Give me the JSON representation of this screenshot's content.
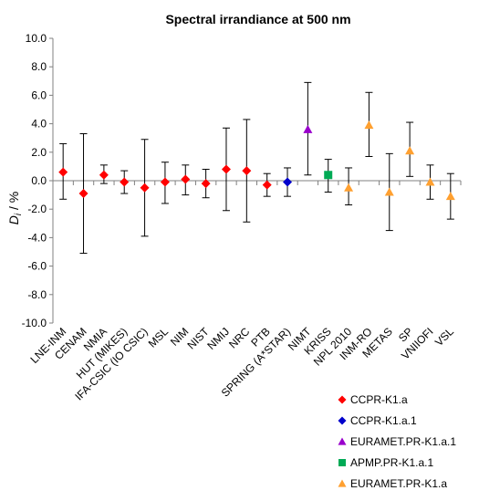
{
  "chart_data": {
    "type": "scatter",
    "title": "Spectral irrandiance at 500 nm",
    "ylabel_main": "D",
    "ylabel_sub": "i",
    "ylabel_unit": " / %",
    "ylim": [
      -10.0,
      10.0
    ],
    "ytick_step": 2.0,
    "ytick_labels": [
      "10.0",
      "8.0",
      "6.0",
      "4.0",
      "2.0",
      "0.0",
      "-2.0",
      "-4.0",
      "-6.0",
      "-8.0",
      "-10.0"
    ],
    "grid": false,
    "categories": [
      "LNE-INM",
      "CENAM",
      "NMIA",
      "HUT (MIKES)",
      "IFA-CSIC (IO CSIC)",
      "MSL",
      "NIM",
      "NIST",
      "NMIJ",
      "NRC",
      "PTB",
      "SPRING (A*STAR)",
      "NIMT",
      "KRISS",
      "NPL 2010",
      "INM-RO",
      "METAS",
      "SP",
      "VNIIOFI",
      "VSL"
    ],
    "series": [
      {
        "name": "CCPR-K1.a",
        "color": "#ff0000",
        "marker": "diamond",
        "points": [
          {
            "x": "LNE-INM",
            "y": 0.6,
            "err_low": -1.3,
            "err_high": 2.6
          },
          {
            "x": "CENAM",
            "y": -0.9,
            "err_low": -5.1,
            "err_high": 3.3
          },
          {
            "x": "NMIA",
            "y": 0.4,
            "err_low": -0.2,
            "err_high": 1.1
          },
          {
            "x": "HUT (MIKES)",
            "y": -0.1,
            "err_low": -0.9,
            "err_high": 0.7
          },
          {
            "x": "IFA-CSIC (IO CSIC)",
            "y": -0.5,
            "err_low": -3.9,
            "err_high": 2.9
          },
          {
            "x": "MSL",
            "y": -0.1,
            "err_low": -1.6,
            "err_high": 1.3
          },
          {
            "x": "NIM",
            "y": 0.1,
            "err_low": -1.0,
            "err_high": 1.1
          },
          {
            "x": "NIST",
            "y": -0.2,
            "err_low": -1.2,
            "err_high": 0.8
          },
          {
            "x": "NMIJ",
            "y": 0.8,
            "err_low": -2.1,
            "err_high": 3.7
          },
          {
            "x": "NRC",
            "y": 0.7,
            "err_low": -2.9,
            "err_high": 4.3
          },
          {
            "x": "PTB",
            "y": -0.3,
            "err_low": -1.1,
            "err_high": 0.5
          }
        ]
      },
      {
        "name": "CCPR-K1.a.1",
        "color": "#0000cc",
        "marker": "diamond",
        "points": [
          {
            "x": "SPRING (A*STAR)",
            "y": -0.1,
            "err_low": -1.1,
            "err_high": 0.9
          }
        ]
      },
      {
        "name": "EURAMET.PR-K1.a.1",
        "color": "#9900cc",
        "marker": "triangle",
        "points": [
          {
            "x": "NIMT",
            "y": 3.6,
            "err_low": 0.4,
            "err_high": 6.9
          }
        ]
      },
      {
        "name": "APMP.PR-K1.a.1",
        "color": "#00aa55",
        "marker": "square",
        "points": [
          {
            "x": "KRISS",
            "y": 0.4,
            "err_low": -0.8,
            "err_high": 1.5
          }
        ]
      },
      {
        "name": "EURAMET.PR-K1.a",
        "color": "#ffa030",
        "marker": "triangle",
        "points": [
          {
            "x": "NPL 2010",
            "y": -0.5,
            "err_low": -1.7,
            "err_high": 0.9
          },
          {
            "x": "INM-RO",
            "y": 3.9,
            "err_low": 1.7,
            "err_high": 6.2
          },
          {
            "x": "METAS",
            "y": -0.8,
            "err_low": -3.5,
            "err_high": 1.9
          },
          {
            "x": "SP",
            "y": 2.1,
            "err_low": 0.3,
            "err_high": 4.1
          },
          {
            "x": "VNIIOFI",
            "y": -0.1,
            "err_low": -1.3,
            "err_high": 1.1
          },
          {
            "x": "VSL",
            "y": -1.1,
            "err_low": -2.7,
            "err_high": 0.5
          }
        ]
      }
    ],
    "legend_placement": "bottom-right"
  }
}
